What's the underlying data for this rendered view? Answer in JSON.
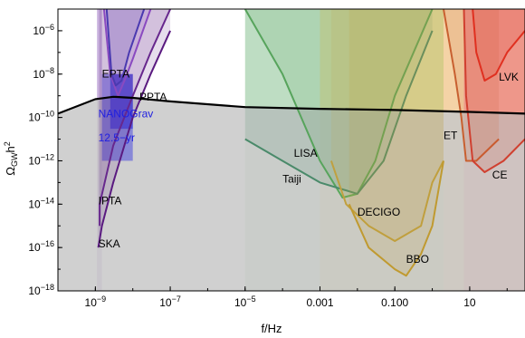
{
  "chart_data": {
    "type": "area",
    "title": "",
    "xlabel": "f/Hz",
    "ylabel_main": "Ω",
    "ylabel_sub": "GW",
    "ylabel_tail": "h",
    "ylabel_sup": "2",
    "x_scale": "log",
    "y_scale": "log",
    "xlim": [
      1e-10,
      300
    ],
    "ylim": [
      1e-18,
      1e-05
    ],
    "x_ticks": [
      {
        "value": 1e-09,
        "base": "10",
        "exp": "−9"
      },
      {
        "value": 1e-07,
        "base": "10",
        "exp": "−7"
      },
      {
        "value": 1e-05,
        "base": "10",
        "exp": "−5"
      },
      {
        "value": 0.001,
        "text": "0.001"
      },
      {
        "value": 0.1,
        "text": "0.100"
      },
      {
        "value": 10,
        "text": "10"
      }
    ],
    "y_ticks": [
      {
        "value": 1e-06,
        "base": "10",
        "exp": "−6"
      },
      {
        "value": 1e-08,
        "base": "10",
        "exp": "−8"
      },
      {
        "value": 1e-10,
        "base": "10",
        "exp": "−10"
      },
      {
        "value": 1e-12,
        "base": "10",
        "exp": "−12"
      },
      {
        "value": 1e-14,
        "base": "10",
        "exp": "−14"
      },
      {
        "value": 1e-16,
        "base": "10",
        "exp": "−16"
      },
      {
        "value": 1e-18,
        "base": "10",
        "exp": "−18"
      }
    ],
    "signal": {
      "color": "#000000",
      "fill": "#c8c8c8",
      "points": [
        [
          1e-10,
          1.5e-10
        ],
        [
          1e-09,
          7e-10
        ],
        [
          3e-09,
          9e-10
        ],
        [
          1e-08,
          8e-10
        ],
        [
          1e-07,
          5.5e-10
        ],
        [
          1e-05,
          3e-10
        ],
        [
          0.001,
          2.5e-10
        ],
        [
          0.1,
          2.2e-10
        ],
        [
          10,
          1.8e-10
        ],
        [
          300,
          1.5e-10
        ]
      ]
    },
    "bands": [
      {
        "name": "LISA-band",
        "range": [
          1e-05,
          0.001
        ],
        "color": "#a8d8a8",
        "opacity": 0.5
      },
      {
        "name": "DECIGO-band",
        "range": [
          0.001,
          2
        ],
        "color": "#c8c870",
        "opacity": 0.6
      },
      {
        "name": "ET-band",
        "range": [
          2,
          7
        ],
        "color": "#f0c080",
        "opacity": 0.7
      },
      {
        "name": "LVK-band",
        "range": [
          7,
          300
        ],
        "color": "#f08070",
        "opacity": 0.7
      },
      {
        "name": "IPTA-band",
        "range": [
          1.1e-09,
          1.5e-09
        ],
        "color": "#b090d0",
        "opacity": 0.6
      }
    ],
    "curves": [
      {
        "name": "LISA",
        "color": "#5aa85a",
        "width": 2,
        "points": [
          [
            1e-05,
            1e-05
          ],
          [
            0.0001,
            1e-08
          ],
          [
            0.001,
            1e-12
          ],
          [
            0.004,
            2e-14
          ],
          [
            0.01,
            3e-14
          ],
          [
            0.03,
            1e-12
          ],
          [
            0.1,
            1e-09
          ],
          [
            1,
            1e-05
          ]
        ]
      },
      {
        "name": "Taiji",
        "color": "#4a8a6a",
        "width": 2,
        "points": [
          [
            1e-05,
            1e-11
          ],
          [
            0.0001,
            1e-12
          ],
          [
            0.001,
            1e-13
          ],
          [
            0.01,
            3e-14
          ],
          [
            0.05,
            1e-12
          ],
          [
            0.2,
            1e-09
          ],
          [
            1,
            1e-06
          ]
        ]
      },
      {
        "name": "DECIGO",
        "color": "#c0a040",
        "width": 2,
        "points": [
          [
            0.002,
            1e-12
          ],
          [
            0.005,
            1e-14
          ],
          [
            0.02,
            1e-15
          ],
          [
            0.1,
            2e-16
          ],
          [
            0.5,
            1e-15
          ],
          [
            1,
            1e-13
          ],
          [
            2,
            1e-12
          ]
        ]
      },
      {
        "name": "BBO",
        "color": "#c09a30",
        "width": 2,
        "points": [
          [
            0.006,
            1e-14
          ],
          [
            0.02,
            1e-16
          ],
          [
            0.1,
            1e-17
          ],
          [
            0.2,
            5e-18
          ],
          [
            0.5,
            5e-17
          ],
          [
            1,
            1e-15
          ],
          [
            2,
            1e-12
          ]
        ]
      },
      {
        "name": "ET",
        "color": "#c86030",
        "width": 2,
        "points": [
          [
            2,
            1e-05
          ],
          [
            4,
            1e-08
          ],
          [
            6,
            1e-10
          ],
          [
            8,
            1e-12
          ],
          [
            15,
            1e-12
          ],
          [
            60,
            1e-11
          ]
        ]
      },
      {
        "name": "CE",
        "color": "#d04030",
        "width": 2,
        "points": [
          [
            7,
            1e-05
          ],
          [
            8,
            1e-09
          ],
          [
            12,
            1e-12
          ],
          [
            25,
            3e-13
          ],
          [
            80,
            1e-12
          ],
          [
            300,
            1e-11
          ]
        ]
      },
      {
        "name": "LVK",
        "color": "#e03020",
        "width": 2,
        "points": [
          [
            12,
            1e-05
          ],
          [
            15,
            1e-07
          ],
          [
            25,
            5e-09
          ],
          [
            50,
            1e-08
          ],
          [
            100,
            1e-07
          ],
          [
            300,
            1e-06
          ]
        ]
      },
      {
        "name": "IPTA",
        "color": "#6a2a90",
        "width": 2,
        "points": [
          [
            1.3e-09,
            1e-15
          ],
          [
            1.3e-09,
            1e-14
          ],
          [
            3e-09,
            5e-12
          ],
          [
            1e-08,
            1e-09
          ],
          [
            3e-08,
            1e-07
          ],
          [
            1e-07,
            1e-05
          ]
        ]
      },
      {
        "name": "SKA",
        "color": "#5a1a80",
        "width": 2,
        "points": [
          [
            1.2e-09,
            1e-16
          ],
          [
            1.5e-09,
            1e-15
          ],
          [
            3e-09,
            1e-13
          ],
          [
            1e-08,
            1e-10
          ],
          [
            3e-08,
            1e-08
          ],
          [
            1e-07,
            1e-06
          ]
        ]
      },
      {
        "name": "PPTA",
        "color": "#8a4ac0",
        "width": 2,
        "points": [
          [
            1.7e-09,
            1e-05
          ],
          [
            2.5e-09,
            1e-08
          ],
          [
            4e-09,
            1e-09
          ],
          [
            6e-09,
            5e-09
          ],
          [
            1e-08,
            5e-08
          ],
          [
            3e-08,
            1e-05
          ]
        ]
      },
      {
        "name": "EPTA",
        "color": "#4a3ab0",
        "width": 2,
        "points": [
          [
            2e-09,
            1e-05
          ],
          [
            2.7e-09,
            1e-08
          ],
          [
            3.5e-09,
            3e-09
          ],
          [
            5e-09,
            5e-09
          ],
          [
            8e-09,
            1e-07
          ],
          [
            2e-08,
            1e-05
          ]
        ]
      }
    ],
    "nanograv": {
      "name": "NANOGrav 12.5-yr",
      "color": "#3030e0",
      "x_range": [
        1.5e-09,
        1e-08
      ],
      "y_range": [
        1e-12,
        1e-08
      ],
      "core_x_range": [
        2.5e-09,
        1e-08
      ],
      "core_y_range": [
        3e-11,
        1e-08
      ]
    },
    "labels": [
      {
        "text": "EPTA",
        "x": 1.5e-09,
        "y": 7e-09,
        "color": "#000000"
      },
      {
        "text": "PPTA",
        "x": 1.5e-08,
        "y": 6e-10,
        "color": "#000000"
      },
      {
        "text": "NANOGrav",
        "x": 1.2e-09,
        "y": 1e-10,
        "color": "#2020e0"
      },
      {
        "text": "12.5−yr",
        "x": 1.2e-09,
        "y": 8e-12,
        "color": "#2020e0"
      },
      {
        "text": "IPTA",
        "x": 1.2e-09,
        "y": 1e-14,
        "color": "#000000"
      },
      {
        "text": "SKA",
        "x": 1.2e-09,
        "y": 1e-16,
        "color": "#000000"
      },
      {
        "text": "LISA",
        "x": 0.0002,
        "y": 1.5e-12,
        "color": "#000000"
      },
      {
        "text": "Taiji",
        "x": 0.0001,
        "y": 1e-13,
        "color": "#000000"
      },
      {
        "text": "DECIGO",
        "x": 0.01,
        "y": 3e-15,
        "color": "#000000"
      },
      {
        "text": "BBO",
        "x": 0.2,
        "y": 2e-17,
        "color": "#000000"
      },
      {
        "text": "ET",
        "x": 2,
        "y": 1e-11,
        "color": "#000000"
      },
      {
        "text": "CE",
        "x": 40,
        "y": 1.5e-13,
        "color": "#000000"
      },
      {
        "text": "LVK",
        "x": 60,
        "y": 5e-09,
        "color": "#000000"
      }
    ]
  }
}
